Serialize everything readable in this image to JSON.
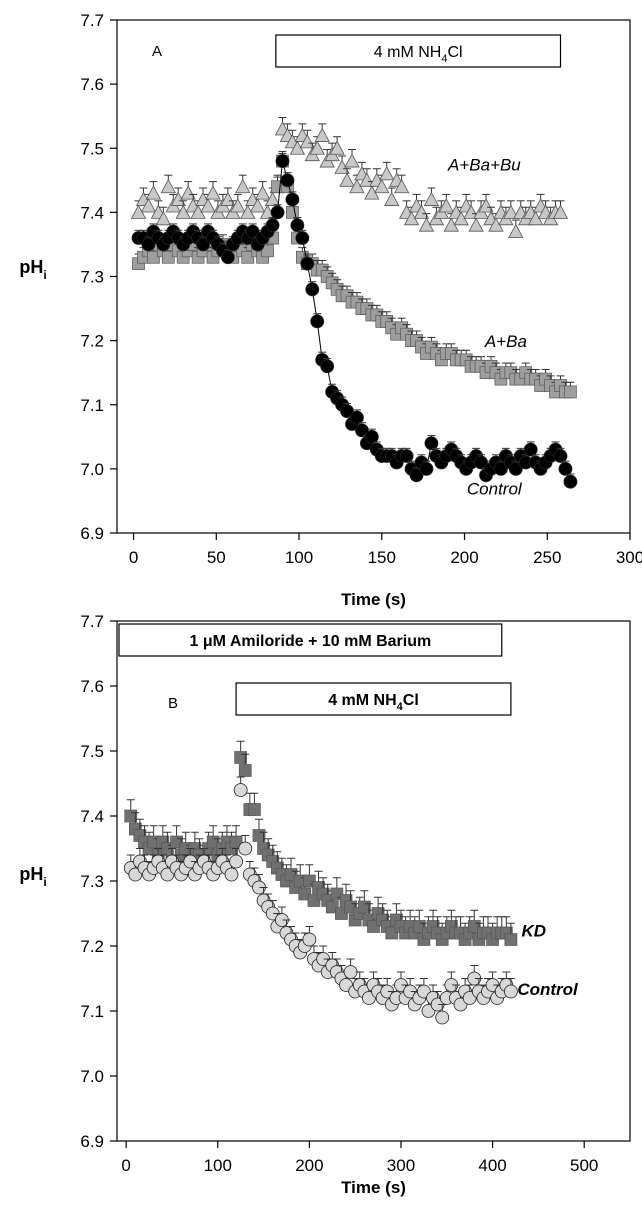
{
  "chart_data": [
    {
      "type": "scatter",
      "panel_label": "A",
      "xlabel": "Time (s)",
      "ylabel_main": "pH",
      "ylabel_sub": "i",
      "xlim": [
        -10,
        300
      ],
      "ylim": [
        6.9,
        7.7
      ],
      "xticks": [
        0,
        50,
        100,
        150,
        200,
        250,
        300
      ],
      "yticks": [
        6.9,
        7.0,
        7.1,
        7.2,
        7.3,
        7.4,
        7.5,
        7.6,
        7.7
      ],
      "ytick_labels": [
        "6.9",
        "7.0",
        "7.1",
        "7.2",
        "7.3",
        "7.4",
        "7.5",
        "7.6",
        "7.7"
      ],
      "treatment_boxes": [
        {
          "main": "4 mM NH",
          "sub": "4",
          "tail": "Cl",
          "x_start": 86,
          "x_end": 258
        }
      ],
      "series": [
        {
          "name": "A+Ba+Bu",
          "marker": "triangle",
          "color": "#c8c8c8",
          "err": 0.018,
          "x": [
            3,
            6,
            9,
            12,
            15,
            18,
            21,
            24,
            27,
            30,
            33,
            36,
            39,
            42,
            45,
            48,
            51,
            54,
            57,
            60,
            63,
            66,
            69,
            72,
            75,
            78,
            81,
            84,
            87,
            90,
            93,
            96,
            99,
            102,
            105,
            108,
            111,
            114,
            117,
            120,
            123,
            126,
            129,
            132,
            135,
            138,
            141,
            144,
            147,
            150,
            153,
            156,
            159,
            162,
            165,
            168,
            171,
            174,
            177,
            180,
            183,
            186,
            189,
            192,
            195,
            198,
            201,
            204,
            207,
            210,
            213,
            216,
            219,
            222,
            225,
            228,
            231,
            234,
            237,
            240,
            243,
            246,
            249,
            252,
            255,
            258
          ],
          "values": [
            7.4,
            7.42,
            7.41,
            7.43,
            7.4,
            7.39,
            7.44,
            7.41,
            7.42,
            7.4,
            7.43,
            7.41,
            7.4,
            7.42,
            7.41,
            7.43,
            7.4,
            7.41,
            7.42,
            7.4,
            7.41,
            7.44,
            7.4,
            7.42,
            7.41,
            7.43,
            7.4,
            7.42,
            7.44,
            7.53,
            7.52,
            7.51,
            7.5,
            7.52,
            7.51,
            7.49,
            7.5,
            7.52,
            7.48,
            7.49,
            7.5,
            7.47,
            7.45,
            7.48,
            7.44,
            7.46,
            7.45,
            7.43,
            7.45,
            7.44,
            7.46,
            7.42,
            7.45,
            7.44,
            7.4,
            7.39,
            7.41,
            7.4,
            7.38,
            7.42,
            7.39,
            7.4,
            7.41,
            7.38,
            7.4,
            7.39,
            7.41,
            7.4,
            7.38,
            7.4,
            7.41,
            7.39,
            7.38,
            7.4,
            7.39,
            7.4,
            7.37,
            7.4,
            7.39,
            7.4,
            7.39,
            7.41,
            7.4,
            7.39,
            7.4,
            7.4
          ]
        },
        {
          "name": "A+Ba",
          "marker": "square",
          "color": "#9e9e9e",
          "err": 0.015,
          "x": [
            3,
            6,
            9,
            12,
            15,
            18,
            21,
            24,
            27,
            30,
            33,
            36,
            39,
            42,
            45,
            48,
            51,
            54,
            57,
            60,
            63,
            66,
            69,
            72,
            75,
            78,
            81,
            84,
            87,
            90,
            93,
            96,
            99,
            102,
            105,
            108,
            111,
            114,
            117,
            120,
            123,
            126,
            129,
            132,
            135,
            138,
            141,
            144,
            147,
            150,
            153,
            156,
            159,
            162,
            165,
            168,
            171,
            174,
            177,
            180,
            183,
            186,
            189,
            192,
            195,
            198,
            201,
            204,
            207,
            210,
            213,
            216,
            219,
            222,
            225,
            228,
            231,
            234,
            237,
            240,
            243,
            246,
            249,
            252,
            255,
            258,
            261,
            264
          ],
          "values": [
            7.32,
            7.33,
            7.34,
            7.33,
            7.35,
            7.34,
            7.33,
            7.35,
            7.34,
            7.33,
            7.34,
            7.35,
            7.33,
            7.34,
            7.35,
            7.33,
            7.34,
            7.35,
            7.34,
            7.33,
            7.35,
            7.34,
            7.33,
            7.35,
            7.34,
            7.33,
            7.34,
            7.36,
            7.44,
            7.48,
            7.44,
            7.4,
            7.36,
            7.33,
            7.32,
            7.32,
            7.31,
            7.31,
            7.3,
            7.29,
            7.28,
            7.27,
            7.27,
            7.26,
            7.26,
            7.25,
            7.25,
            7.24,
            7.24,
            7.23,
            7.23,
            7.22,
            7.21,
            7.22,
            7.21,
            7.2,
            7.2,
            7.19,
            7.18,
            7.19,
            7.18,
            7.17,
            7.18,
            7.18,
            7.17,
            7.17,
            7.17,
            7.16,
            7.16,
            7.16,
            7.15,
            7.16,
            7.15,
            7.14,
            7.15,
            7.15,
            7.14,
            7.14,
            7.15,
            7.14,
            7.14,
            7.13,
            7.14,
            7.13,
            7.12,
            7.13,
            7.12,
            7.12
          ]
        },
        {
          "name": "Control",
          "marker": "circle",
          "color": "#000000",
          "err": 0.012,
          "connected": true,
          "x": [
            3,
            6,
            9,
            12,
            15,
            18,
            21,
            24,
            27,
            30,
            33,
            36,
            39,
            42,
            45,
            48,
            51,
            54,
            57,
            60,
            63,
            66,
            69,
            72,
            75,
            78,
            81,
            84,
            87,
            90,
            93,
            96,
            99,
            102,
            105,
            108,
            111,
            114,
            117,
            120,
            123,
            126,
            129,
            132,
            135,
            138,
            141,
            144,
            147,
            150,
            153,
            156,
            159,
            162,
            165,
            168,
            171,
            174,
            177,
            180,
            183,
            186,
            189,
            192,
            195,
            198,
            201,
            204,
            207,
            210,
            213,
            216,
            219,
            222,
            225,
            228,
            231,
            234,
            237,
            240,
            243,
            246,
            249,
            252,
            255,
            258,
            261,
            264
          ],
          "values": [
            7.36,
            7.36,
            7.35,
            7.37,
            7.36,
            7.35,
            7.36,
            7.37,
            7.36,
            7.35,
            7.36,
            7.37,
            7.36,
            7.35,
            7.37,
            7.36,
            7.35,
            7.34,
            7.33,
            7.35,
            7.36,
            7.37,
            7.36,
            7.37,
            7.35,
            7.36,
            7.37,
            7.38,
            7.4,
            7.48,
            7.45,
            7.42,
            7.38,
            7.36,
            7.32,
            7.28,
            7.23,
            7.17,
            7.16,
            7.12,
            7.11,
            7.1,
            7.09,
            7.07,
            7.08,
            7.06,
            7.04,
            7.05,
            7.03,
            7.02,
            7.02,
            7.02,
            7.01,
            7.02,
            7.02,
            7.0,
            6.99,
            7.01,
            7.0,
            7.04,
            7.02,
            7.01,
            7.02,
            7.03,
            7.02,
            7.01,
            7.0,
            7.01,
            7.02,
            7.01,
            6.99,
            7.0,
            7.01,
            7.0,
            7.02,
            7.01,
            7.0,
            7.02,
            7.01,
            7.03,
            7.01,
            7.0,
            7.01,
            7.02,
            7.03,
            7.02,
            7.0,
            6.98
          ]
        }
      ],
      "series_labels": [
        {
          "text": "A+Ba+Bu",
          "x": 212,
          "y": 7.465
        },
        {
          "text": "A+Ba",
          "x": 225,
          "y": 7.19
        },
        {
          "text": "Control",
          "x": 218,
          "y": 6.96
        }
      ]
    },
    {
      "type": "scatter",
      "panel_label": "B",
      "xlabel": "Time (s)",
      "ylabel_main": "pH",
      "ylabel_sub": "i",
      "xlim": [
        -10,
        550
      ],
      "ylim": [
        6.9,
        7.7
      ],
      "xticks": [
        0,
        100,
        200,
        300,
        400,
        500
      ],
      "yticks": [
        6.9,
        7.0,
        7.1,
        7.2,
        7.3,
        7.4,
        7.5,
        7.6,
        7.7
      ],
      "ytick_labels": [
        "6.9",
        "7.0",
        "7.1",
        "7.2",
        "7.3",
        "7.4",
        "7.5",
        "7.6",
        "7.7"
      ],
      "treatment_boxes": [
        {
          "main": "1 μM Amiloride + 10 mM Barium",
          "sub": "",
          "tail": "",
          "x_start": -10,
          "x_end": 410
        },
        {
          "main": "4 mM NH",
          "sub": "4",
          "tail": "Cl",
          "x_start": 120,
          "x_end": 420
        }
      ],
      "series": [
        {
          "name": "KD",
          "marker": "square",
          "color": "#707070",
          "err": 0.025,
          "x": [
            5,
            10,
            15,
            20,
            25,
            30,
            35,
            40,
            45,
            50,
            55,
            60,
            65,
            70,
            75,
            80,
            85,
            90,
            95,
            100,
            105,
            110,
            115,
            120,
            125,
            130,
            135,
            140,
            145,
            150,
            155,
            160,
            165,
            170,
            175,
            180,
            185,
            190,
            195,
            200,
            205,
            210,
            215,
            220,
            225,
            230,
            235,
            240,
            245,
            250,
            255,
            260,
            265,
            270,
            275,
            280,
            285,
            290,
            295,
            300,
            305,
            310,
            315,
            320,
            325,
            330,
            335,
            340,
            345,
            350,
            355,
            360,
            365,
            370,
            375,
            380,
            385,
            390,
            395,
            400,
            405,
            410,
            415,
            420
          ],
          "values": [
            7.4,
            7.38,
            7.37,
            7.36,
            7.35,
            7.36,
            7.34,
            7.36,
            7.35,
            7.33,
            7.36,
            7.34,
            7.35,
            7.33,
            7.35,
            7.34,
            7.33,
            7.35,
            7.36,
            7.34,
            7.35,
            7.36,
            7.35,
            7.36,
            7.49,
            7.47,
            7.41,
            7.41,
            7.37,
            7.35,
            7.34,
            7.33,
            7.32,
            7.31,
            7.3,
            7.31,
            7.29,
            7.3,
            7.28,
            7.3,
            7.27,
            7.29,
            7.28,
            7.27,
            7.26,
            7.28,
            7.25,
            7.27,
            7.26,
            7.24,
            7.25,
            7.26,
            7.24,
            7.23,
            7.25,
            7.24,
            7.23,
            7.22,
            7.24,
            7.23,
            7.22,
            7.23,
            7.22,
            7.23,
            7.21,
            7.22,
            7.23,
            7.22,
            7.21,
            7.22,
            7.23,
            7.22,
            7.22,
            7.21,
            7.22,
            7.23,
            7.21,
            7.22,
            7.22,
            7.21,
            7.22,
            7.22,
            7.22,
            7.21
          ]
        },
        {
          "name": "Control",
          "marker": "circle",
          "color": "#d8d8d8",
          "err": 0.02,
          "x": [
            5,
            10,
            15,
            20,
            25,
            30,
            35,
            40,
            45,
            50,
            55,
            60,
            65,
            70,
            75,
            80,
            85,
            90,
            95,
            100,
            105,
            110,
            115,
            120,
            125,
            130,
            135,
            140,
            145,
            150,
            155,
            160,
            165,
            170,
            175,
            180,
            185,
            190,
            195,
            200,
            205,
            210,
            215,
            220,
            225,
            230,
            235,
            240,
            245,
            250,
            255,
            260,
            265,
            270,
            275,
            280,
            285,
            290,
            295,
            300,
            305,
            310,
            315,
            320,
            325,
            330,
            335,
            340,
            345,
            350,
            355,
            360,
            365,
            370,
            375,
            380,
            385,
            390,
            395,
            400,
            405,
            410,
            415,
            420
          ],
          "values": [
            7.32,
            7.31,
            7.33,
            7.32,
            7.31,
            7.32,
            7.33,
            7.32,
            7.31,
            7.33,
            7.32,
            7.31,
            7.32,
            7.33,
            7.31,
            7.32,
            7.33,
            7.32,
            7.31,
            7.32,
            7.33,
            7.32,
            7.31,
            7.33,
            7.44,
            7.35,
            7.31,
            7.3,
            7.29,
            7.27,
            7.26,
            7.25,
            7.23,
            7.24,
            7.22,
            7.21,
            7.2,
            7.19,
            7.2,
            7.21,
            7.18,
            7.17,
            7.18,
            7.16,
            7.17,
            7.16,
            7.15,
            7.14,
            7.16,
            7.13,
            7.14,
            7.13,
            7.12,
            7.14,
            7.13,
            7.12,
            7.13,
            7.11,
            7.12,
            7.14,
            7.12,
            7.13,
            7.11,
            7.12,
            7.13,
            7.1,
            7.12,
            7.11,
            7.09,
            7.12,
            7.14,
            7.12,
            7.11,
            7.13,
            7.12,
            7.15,
            7.13,
            7.12,
            7.13,
            7.14,
            7.12,
            7.13,
            7.14,
            7.13
          ]
        }
      ],
      "series_labels": [
        {
          "text": "KD",
          "x": 445,
          "y": 7.215
        },
        {
          "text": "Control",
          "x": 460,
          "y": 7.125
        }
      ]
    }
  ]
}
